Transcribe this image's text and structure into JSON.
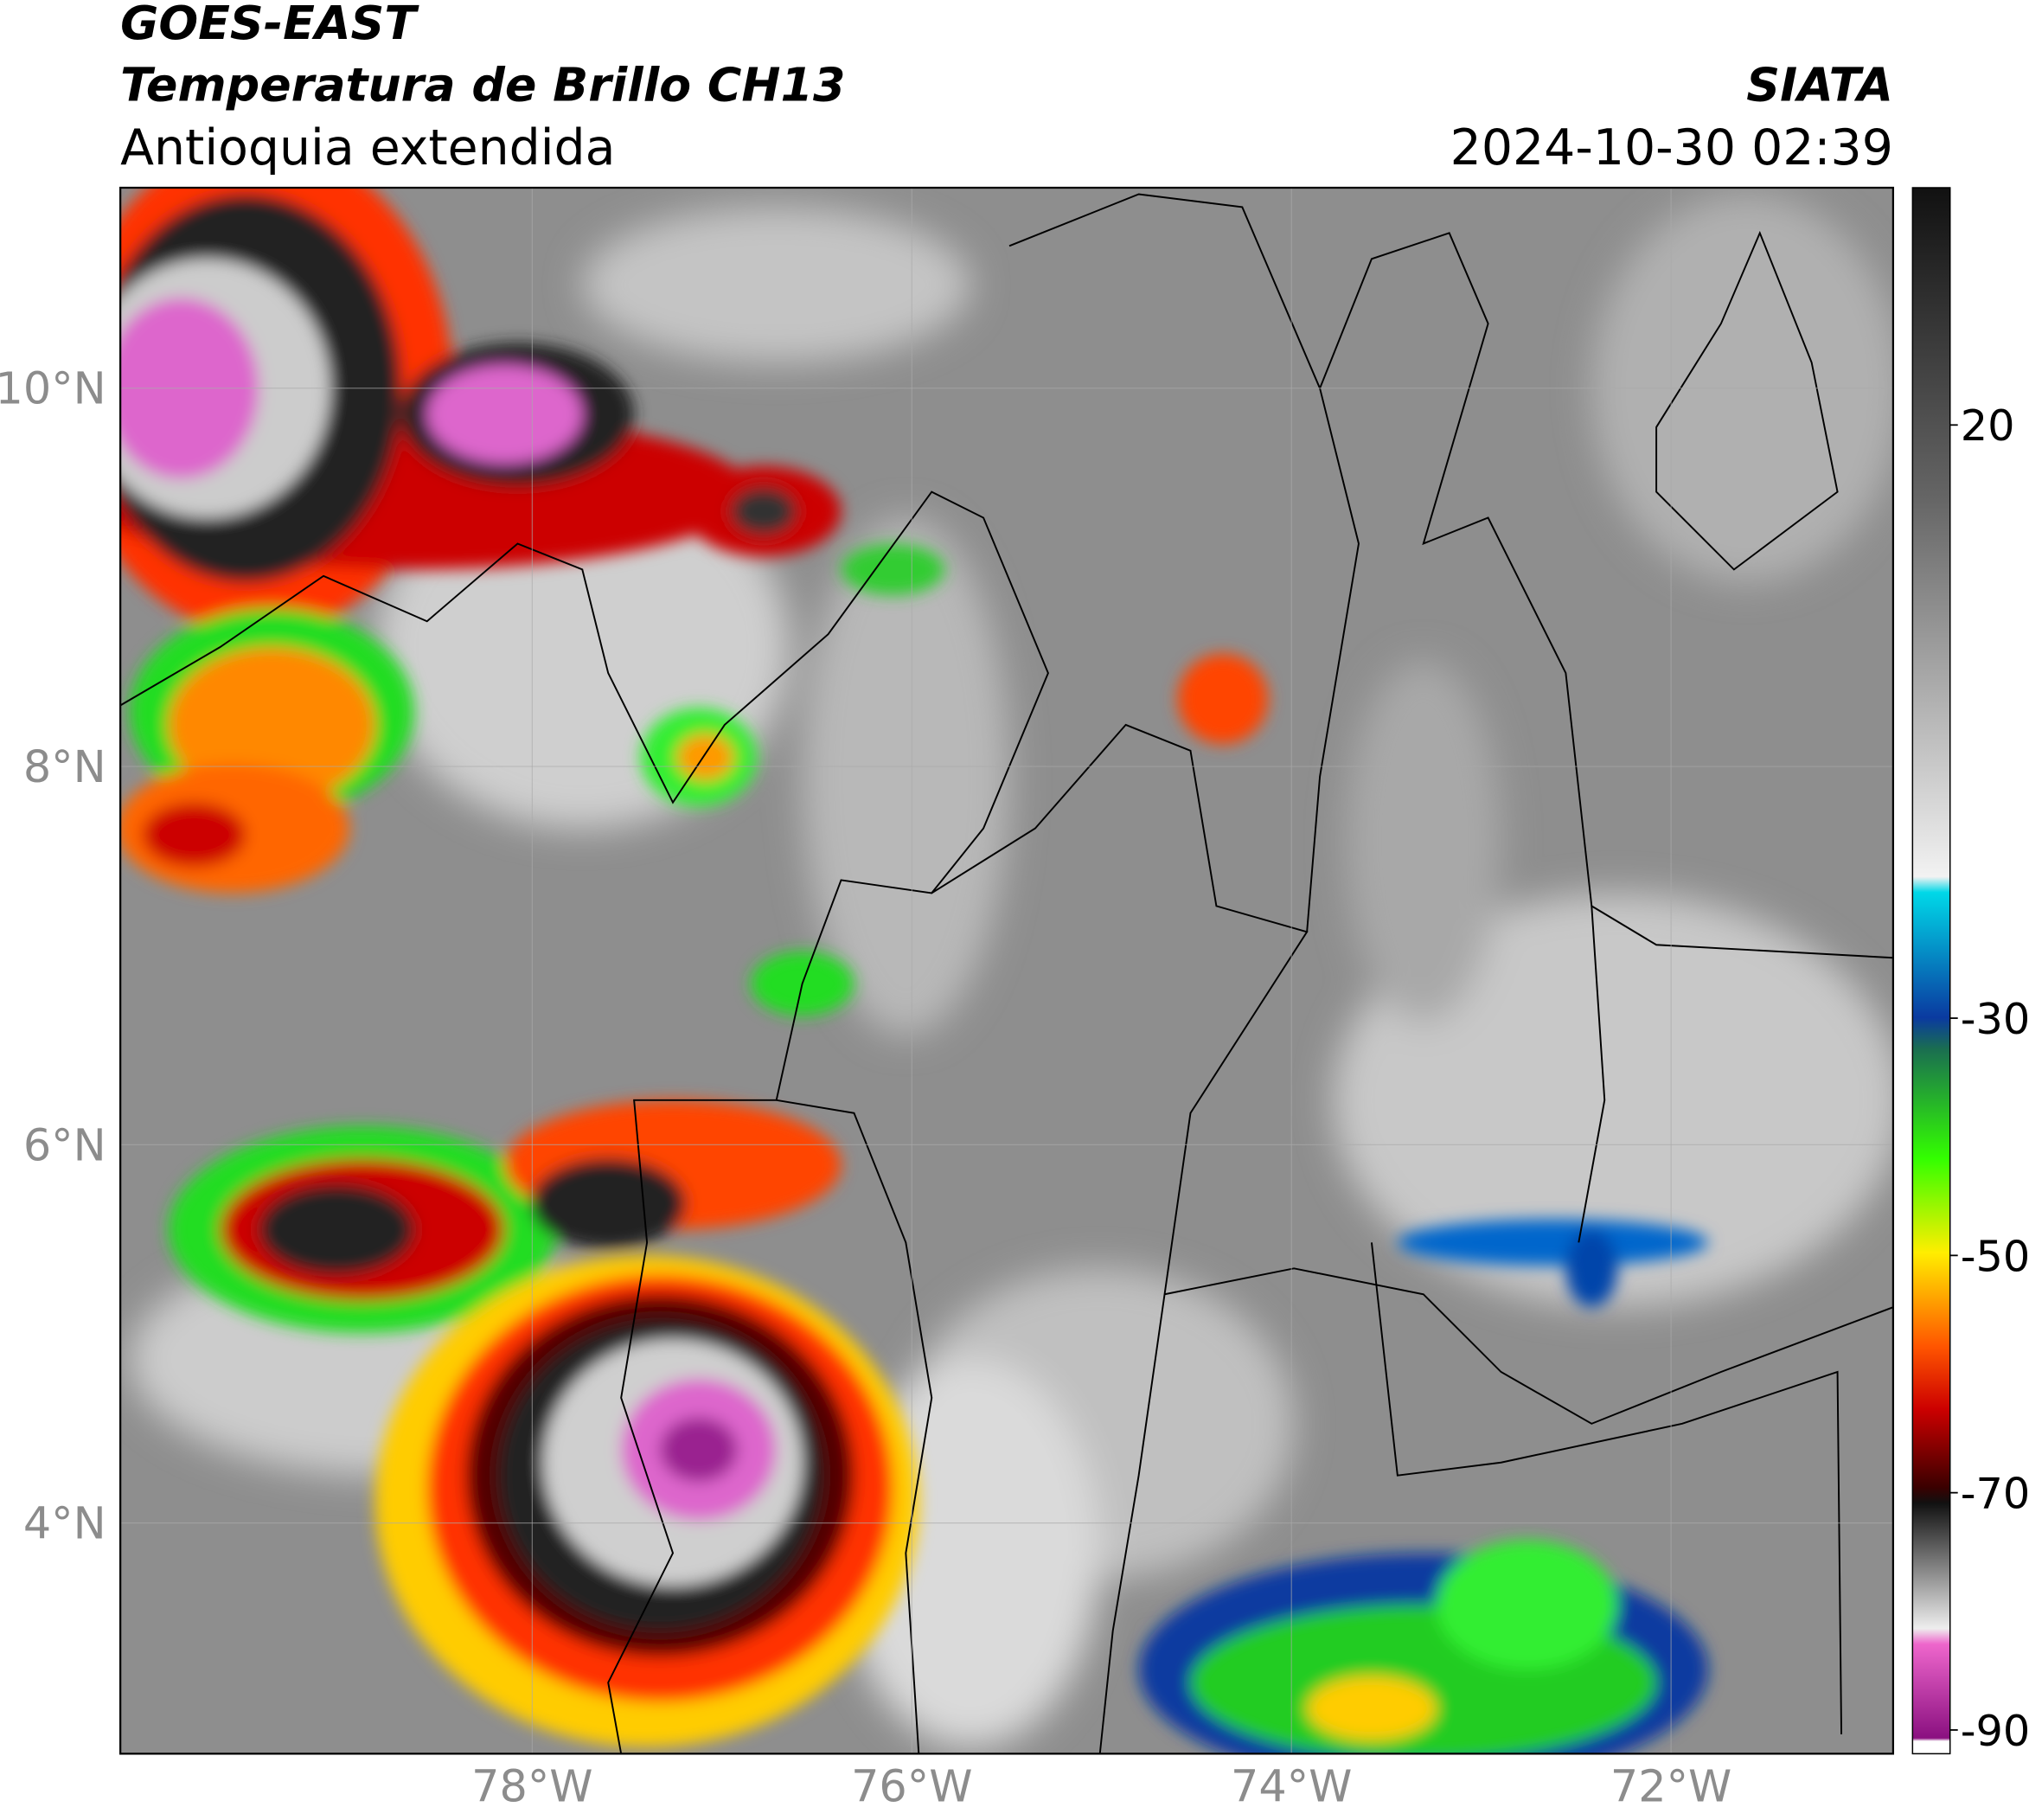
{
  "header": {
    "title": "GOES-EAST",
    "subtitle": "Temperatura de Brillo CH13",
    "region": "Antioquia extendida",
    "source": "SIATA",
    "datetime": "2024-10-30 02:39"
  },
  "map": {
    "xlim": [
      -80.17,
      -70.83
    ],
    "ylim": [
      2.78,
      11.06
    ],
    "xticks": [
      {
        "value": -78,
        "label": "78°W"
      },
      {
        "value": -76,
        "label": "76°W"
      },
      {
        "value": -74,
        "label": "74°W"
      },
      {
        "value": -72,
        "label": "72°W"
      }
    ],
    "yticks": [
      {
        "value": 10,
        "label": "10°N"
      },
      {
        "value": 8,
        "label": "8°N"
      },
      {
        "value": 6,
        "label": "6°N"
      },
      {
        "value": 4,
        "label": "4°N"
      }
    ],
    "grid": true
  },
  "colorbar": {
    "lim": [
      -92,
      40
    ],
    "ticks": [
      20,
      -30,
      -50,
      -70,
      -90
    ]
  }
}
